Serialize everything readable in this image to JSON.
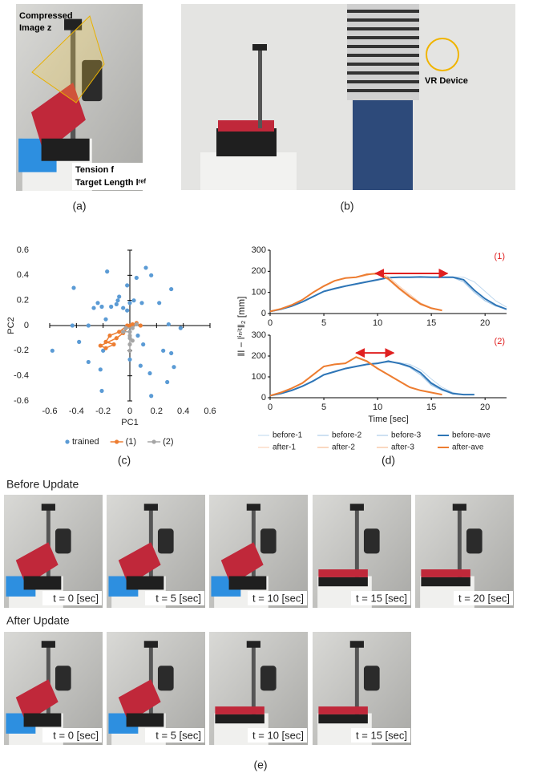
{
  "figure_a": {
    "caption": "(a)",
    "labels": [
      "Compressed",
      "Image z",
      "Tension f",
      "Target Length lʳᵉᶠ"
    ]
  },
  "figure_b": {
    "caption": "(b)",
    "labels": [
      "VR Device"
    ]
  },
  "figure_e": {
    "caption": "(e)",
    "rows": [
      {
        "title": "Before Update",
        "frames": [
          "t = 0 [sec]",
          "t = 5 [sec]",
          "t = 10 [sec]",
          "t = 15 [sec]",
          "t = 20 [sec]"
        ]
      },
      {
        "title": "After Update",
        "frames": [
          "t = 0 [sec]",
          "t = 5 [sec]",
          "t = 10 [sec]",
          "t = 15 [sec]"
        ]
      }
    ]
  },
  "chart_data": [
    {
      "type": "scatter",
      "caption": "(c)",
      "x_label": "PC1",
      "y_label": "PC2",
      "xlim": [
        -0.6,
        0.6
      ],
      "ylim": [
        -0.6,
        0.6
      ],
      "xticks": [
        -0.6,
        -0.4,
        -0.2,
        0,
        0.2,
        0.4,
        0.6
      ],
      "yticks": [
        -0.6,
        -0.4,
        -0.2,
        0,
        0.2,
        0.4,
        0.6
      ],
      "legend": "bottom",
      "series": [
        {
          "name": "trained",
          "color": "#5b9bd5",
          "line": false,
          "x": [
            -0.42,
            -0.17,
            0.12,
            0.16,
            -0.02,
            0.05,
            0.31,
            -0.1,
            -0.08,
            -0.09,
            -0.14,
            -0.21,
            -0.27,
            -0.05,
            0.0,
            0.09,
            -0.24,
            0.22,
            -0.02,
            0.03,
            0.29,
            -0.43,
            -0.31,
            -0.18,
            0.38,
            0.06,
            -0.38,
            -0.58,
            -0.31,
            -0.2,
            -0.22,
            0.25,
            0.31,
            0.33,
            0.15,
            0.28,
            -0.21,
            0.16,
            0.08,
            0.0,
            0.1
          ],
          "y": [
            0.3,
            0.43,
            0.46,
            0.4,
            0.32,
            0.38,
            0.29,
            0.17,
            0.23,
            0.2,
            0.15,
            0.15,
            0.14,
            0.14,
            0.18,
            0.18,
            0.18,
            0.18,
            0.12,
            0.2,
            0.01,
            0.0,
            0.0,
            0.05,
            -0.02,
            -0.08,
            -0.13,
            -0.2,
            -0.29,
            -0.2,
            -0.35,
            -0.2,
            -0.22,
            -0.33,
            -0.38,
            -0.45,
            -0.52,
            -0.56,
            -0.32,
            -0.27,
            -0.15
          ]
        },
        {
          "name": "(1)",
          "color": "#ed7d31",
          "line": true,
          "x": [
            0.08,
            0.05,
            0.0,
            -0.05,
            -0.1,
            -0.22,
            -0.18,
            -0.12,
            -0.18,
            -0.15,
            -0.08,
            -0.02,
            0.02
          ],
          "y": [
            0.0,
            0.02,
            0.0,
            -0.06,
            -0.1,
            -0.16,
            -0.18,
            -0.15,
            -0.13,
            -0.08,
            -0.05,
            0.0,
            0.01
          ]
        },
        {
          "name": "(2)",
          "color": "#a5a5a5",
          "line": true,
          "x": [
            0.05,
            0.02,
            -0.03,
            -0.05,
            0.0,
            0.0,
            0.02,
            0.0,
            0.0,
            0.0
          ],
          "y": [
            0.01,
            -0.02,
            -0.02,
            -0.05,
            -0.05,
            -0.08,
            -0.12,
            -0.1,
            -0.15,
            -0.2
          ]
        }
      ]
    },
    {
      "type": "line",
      "annotation": "(1)",
      "y_label": "‖l − lⁱⁿⁱᵗ‖₂ [mm]",
      "x": [
        0,
        1,
        2,
        3,
        4,
        5,
        6,
        7,
        8,
        9,
        10,
        11,
        12,
        13,
        14,
        15,
        16,
        17,
        18,
        19,
        20,
        21,
        22
      ],
      "xlim": [
        0,
        22
      ],
      "xticks": [
        0,
        5,
        10,
        15,
        20
      ],
      "ylim": [
        0,
        300
      ],
      "yticks": [
        0,
        100,
        200,
        300
      ],
      "span": {
        "x": [
          9.8,
          16.5
        ],
        "y": 190,
        "color": "#e02020"
      },
      "series": [
        {
          "color": "#bdd7ee",
          "width": 1,
          "values": [
            10,
            20,
            36,
            56,
            82,
            106,
            120,
            132,
            142,
            152,
            162,
            170,
            173,
            173,
            174,
            173,
            173,
            173,
            172,
            150,
            105,
            60,
            30
          ]
        },
        {
          "color": "#9dc3e6",
          "width": 1,
          "values": [
            11,
            21,
            34,
            54,
            78,
            103,
            116,
            128,
            139,
            149,
            158,
            168,
            171,
            172,
            172,
            172,
            171,
            170,
            150,
            100,
            60,
            35,
            20
          ]
        },
        {
          "color": "#9dc3e6",
          "width": 1,
          "values": [
            9,
            19,
            35,
            55,
            80,
            106,
            119,
            131,
            141,
            150,
            161,
            171,
            172,
            172,
            173,
            172,
            172,
            171,
            160,
            110,
            70,
            40,
            20
          ]
        },
        {
          "color": "#2e75b6",
          "width": 2,
          "values": [
            10,
            20,
            35,
            55,
            80,
            105,
            118,
            130,
            140,
            150,
            160,
            170,
            172,
            172,
            173,
            172,
            172,
            172,
            160,
            110,
            70,
            40,
            20
          ]
        },
        {
          "color": "#f8cbad",
          "width": 1,
          "values": [
            10,
            22,
            40,
            66,
            102,
            132,
            156,
            168,
            172,
            180,
            195,
            175,
            130,
            90,
            50,
            28,
            15,
            null,
            null,
            null,
            null,
            null,
            null
          ]
        },
        {
          "color": "#f4b183",
          "width": 1,
          "values": [
            10,
            23,
            42,
            64,
            98,
            128,
            154,
            167,
            173,
            186,
            188,
            160,
            115,
            76,
            42,
            24,
            14,
            null,
            null,
            null,
            null,
            null,
            null
          ]
        },
        {
          "color": "#f4b183",
          "width": 1,
          "values": [
            11,
            21,
            39,
            65,
            100,
            131,
            155,
            169,
            171,
            188,
            185,
            162,
            118,
            78,
            44,
            25,
            15,
            null,
            null,
            null,
            null,
            null,
            null
          ]
        },
        {
          "color": "#ed7d31",
          "width": 2,
          "values": [
            10,
            22,
            40,
            65,
            100,
            130,
            155,
            168,
            172,
            185,
            190,
            165,
            120,
            80,
            45,
            25,
            15,
            null,
            null,
            null,
            null,
            null,
            null
          ]
        }
      ]
    },
    {
      "type": "line",
      "annotation": "(2)",
      "caption": "(d)",
      "x_label": "Time [sec]",
      "x": [
        0,
        1,
        2,
        3,
        4,
        5,
        6,
        7,
        8,
        9,
        10,
        11,
        12,
        13,
        14,
        15,
        16,
        17,
        18,
        19,
        20,
        21,
        22
      ],
      "xlim": [
        0,
        22
      ],
      "xticks": [
        0,
        5,
        10,
        15,
        20
      ],
      "ylim": [
        0,
        300
      ],
      "yticks": [
        0,
        100,
        200,
        300
      ],
      "span": {
        "x": [
          8,
          11.5
        ],
        "y": 215,
        "color": "#e02020"
      },
      "legend": "bottom",
      "series": [
        {
          "name": "before-1",
          "color": "#bdd7ee",
          "width": 1,
          "values": [
            10,
            21,
            36,
            56,
            82,
            112,
            127,
            142,
            152,
            161,
            166,
            170,
            168,
            160,
            135,
            90,
            50,
            25,
            15,
            15,
            null,
            null,
            null
          ]
        },
        {
          "name": "before-2",
          "color": "#9dc3e6",
          "width": 1,
          "values": [
            11,
            19,
            34,
            54,
            79,
            108,
            124,
            139,
            149,
            158,
            163,
            178,
            163,
            145,
            110,
            60,
            35,
            18,
            15,
            15,
            null,
            null,
            null
          ]
        },
        {
          "name": "before-3",
          "color": "#9dc3e6",
          "width": 1,
          "values": [
            9,
            20,
            35,
            55,
            80,
            110,
            125,
            140,
            150,
            161,
            166,
            176,
            164,
            148,
            118,
            65,
            38,
            20,
            15,
            15,
            null,
            null,
            null
          ]
        },
        {
          "name": "before-ave",
          "color": "#2e75b6",
          "width": 2,
          "values": [
            10,
            20,
            35,
            55,
            80,
            110,
            125,
            140,
            150,
            160,
            165,
            175,
            165,
            150,
            120,
            70,
            40,
            20,
            15,
            15,
            null,
            null,
            null
          ]
        },
        {
          "name": "after-1",
          "color": "#f8cbad",
          "width": 1,
          "values": [
            10,
            24,
            44,
            72,
            112,
            152,
            161,
            166,
            192,
            172,
            138,
            108,
            78,
            48,
            34,
            24,
            15,
            null,
            null,
            null,
            null,
            null,
            null
          ]
        },
        {
          "name": "after-2",
          "color": "#f4b183",
          "width": 1,
          "values": [
            11,
            26,
            46,
            68,
            108,
            148,
            159,
            164,
            197,
            178,
            142,
            112,
            82,
            52,
            36,
            26,
            15,
            null,
            null,
            null,
            null,
            null,
            null
          ]
        },
        {
          "name": "after-3",
          "color": "#f4b183",
          "width": 1,
          "values": [
            10,
            25,
            45,
            70,
            110,
            150,
            160,
            165,
            195,
            176,
            140,
            110,
            80,
            50,
            35,
            25,
            15,
            null,
            null,
            null,
            null,
            null,
            null
          ]
        },
        {
          "name": "after-ave",
          "color": "#ed7d31",
          "width": 2,
          "values": [
            10,
            25,
            45,
            70,
            110,
            150,
            160,
            165,
            195,
            175,
            140,
            110,
            80,
            50,
            35,
            25,
            15,
            null,
            null,
            null,
            null,
            null,
            null
          ]
        }
      ]
    }
  ]
}
